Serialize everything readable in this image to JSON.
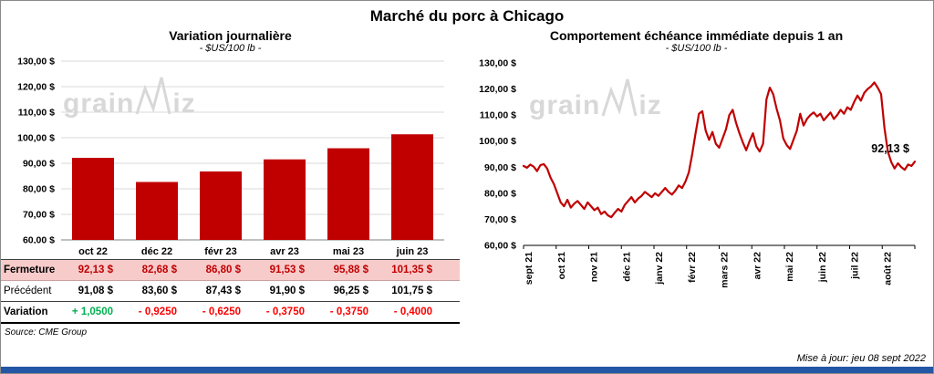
{
  "page": {
    "title": "Marché du porc à Chicago",
    "source": "Source: CME Group",
    "update": "Mise à jour: jeu 08 sept 2022",
    "watermark": {
      "left": "grain",
      "right": "iz"
    }
  },
  "colors": {
    "series": "#C00000",
    "fermeture_bg": "#F8CBCB",
    "fermeture_text": "#C00000",
    "positive": "#00B050",
    "negative": "#FF0000",
    "grid": "#D9D9D9",
    "axis": "#808080",
    "footer_bar": "#2356A5",
    "watermark": "#D8D8D8"
  },
  "left_panel": {
    "title": "Variation journalière",
    "subtitle": "- $US/100 lb -",
    "table": {
      "rows": [
        {
          "label": "Fermeture",
          "values": [
            "92,13 $",
            "82,68 $",
            "86,80 $",
            "91,53 $",
            "95,88 $",
            "101,35 $"
          ]
        },
        {
          "label": "Précédent",
          "values": [
            "91,08 $",
            "83,60 $",
            "87,43 $",
            "91,90 $",
            "96,25 $",
            "101,75 $"
          ]
        },
        {
          "label": "Variation",
          "values": [
            "+ 1,0500",
            "- 0,9250",
            "- 0,6250",
            "- 0,3750",
            "- 0,3750",
            "- 0,4000"
          ]
        }
      ]
    }
  },
  "right_panel": {
    "title": "Comportement échéance immédiate depuis 1 an",
    "subtitle": "- $US/100 lb -",
    "annotation": "92,13 $"
  },
  "chart_data": [
    {
      "type": "bar",
      "title": "Variation journalière",
      "subtitle": "- $US/100 lb -",
      "categories": [
        "oct 22",
        "déc 22",
        "févr 23",
        "avr 23",
        "mai 23",
        "juin 23"
      ],
      "values": [
        92.13,
        82.68,
        86.8,
        91.53,
        95.88,
        101.35
      ],
      "ylim": [
        60,
        130
      ],
      "yticks": [
        60,
        70,
        80,
        90,
        100,
        110,
        120,
        130
      ],
      "ytick_labels": [
        "60,00 $",
        "70,00 $",
        "80,00 $",
        "90,00 $",
        "100,00 $",
        "110,00 $",
        "120,00 $",
        "130,00 $"
      ],
      "grid": true,
      "legend": "none"
    },
    {
      "type": "line",
      "title": "Comportement échéance immédiate depuis 1 an",
      "subtitle": "- $US/100 lb -",
      "x_labels": [
        "sept 21",
        "oct 21",
        "nov 21",
        "déc 21",
        "janv 22",
        "févr 22",
        "mars 22",
        "avr 22",
        "mai 22",
        "juin 22",
        "juil 22",
        "août 22"
      ],
      "values": [
        90.5,
        89.8,
        91.0,
        90.2,
        88.5,
        90.8,
        91.2,
        89.5,
        86.0,
        83.5,
        80.0,
        76.5,
        75.0,
        77.5,
        74.5,
        76.0,
        77.0,
        75.5,
        74.0,
        76.5,
        75.0,
        73.5,
        74.5,
        72.0,
        73.0,
        71.5,
        70.8,
        72.5,
        74.0,
        73.0,
        75.5,
        77.0,
        78.5,
        76.5,
        78.0,
        79.0,
        80.5,
        79.5,
        78.5,
        80.0,
        79.0,
        80.5,
        82.0,
        80.5,
        79.5,
        81.0,
        83.0,
        82.0,
        84.5,
        88.0,
        95.0,
        103.0,
        110.5,
        111.5,
        104.0,
        100.5,
        103.5,
        99.0,
        97.5,
        101.0,
        104.5,
        110.0,
        112.0,
        107.0,
        103.0,
        99.5,
        96.5,
        100.0,
        103.0,
        98.0,
        96.0,
        99.0,
        116.0,
        120.5,
        118.0,
        112.5,
        108.0,
        101.0,
        98.5,
        97.0,
        100.5,
        104.0,
        110.5,
        106.0,
        108.5,
        110.0,
        111.0,
        109.5,
        110.5,
        108.0,
        109.5,
        111.0,
        108.5,
        110.0,
        112.0,
        110.5,
        113.0,
        112.0,
        115.0,
        117.5,
        115.5,
        118.5,
        120.0,
        121.0,
        122.5,
        120.5,
        118.0,
        105.0,
        96.0,
        92.0,
        89.5,
        91.5,
        90.0,
        89.0,
        91.0,
        90.5,
        92.13
      ],
      "ylim": [
        60,
        130
      ],
      "yticks": [
        60,
        70,
        80,
        90,
        100,
        110,
        120,
        130
      ],
      "ytick_labels": [
        "60,00 $",
        "70,00 $",
        "80,00 $",
        "90,00 $",
        "100,00 $",
        "110,00 $",
        "120,00 $",
        "130,00 $"
      ],
      "grid": false,
      "end_label": "92,13 $"
    }
  ]
}
